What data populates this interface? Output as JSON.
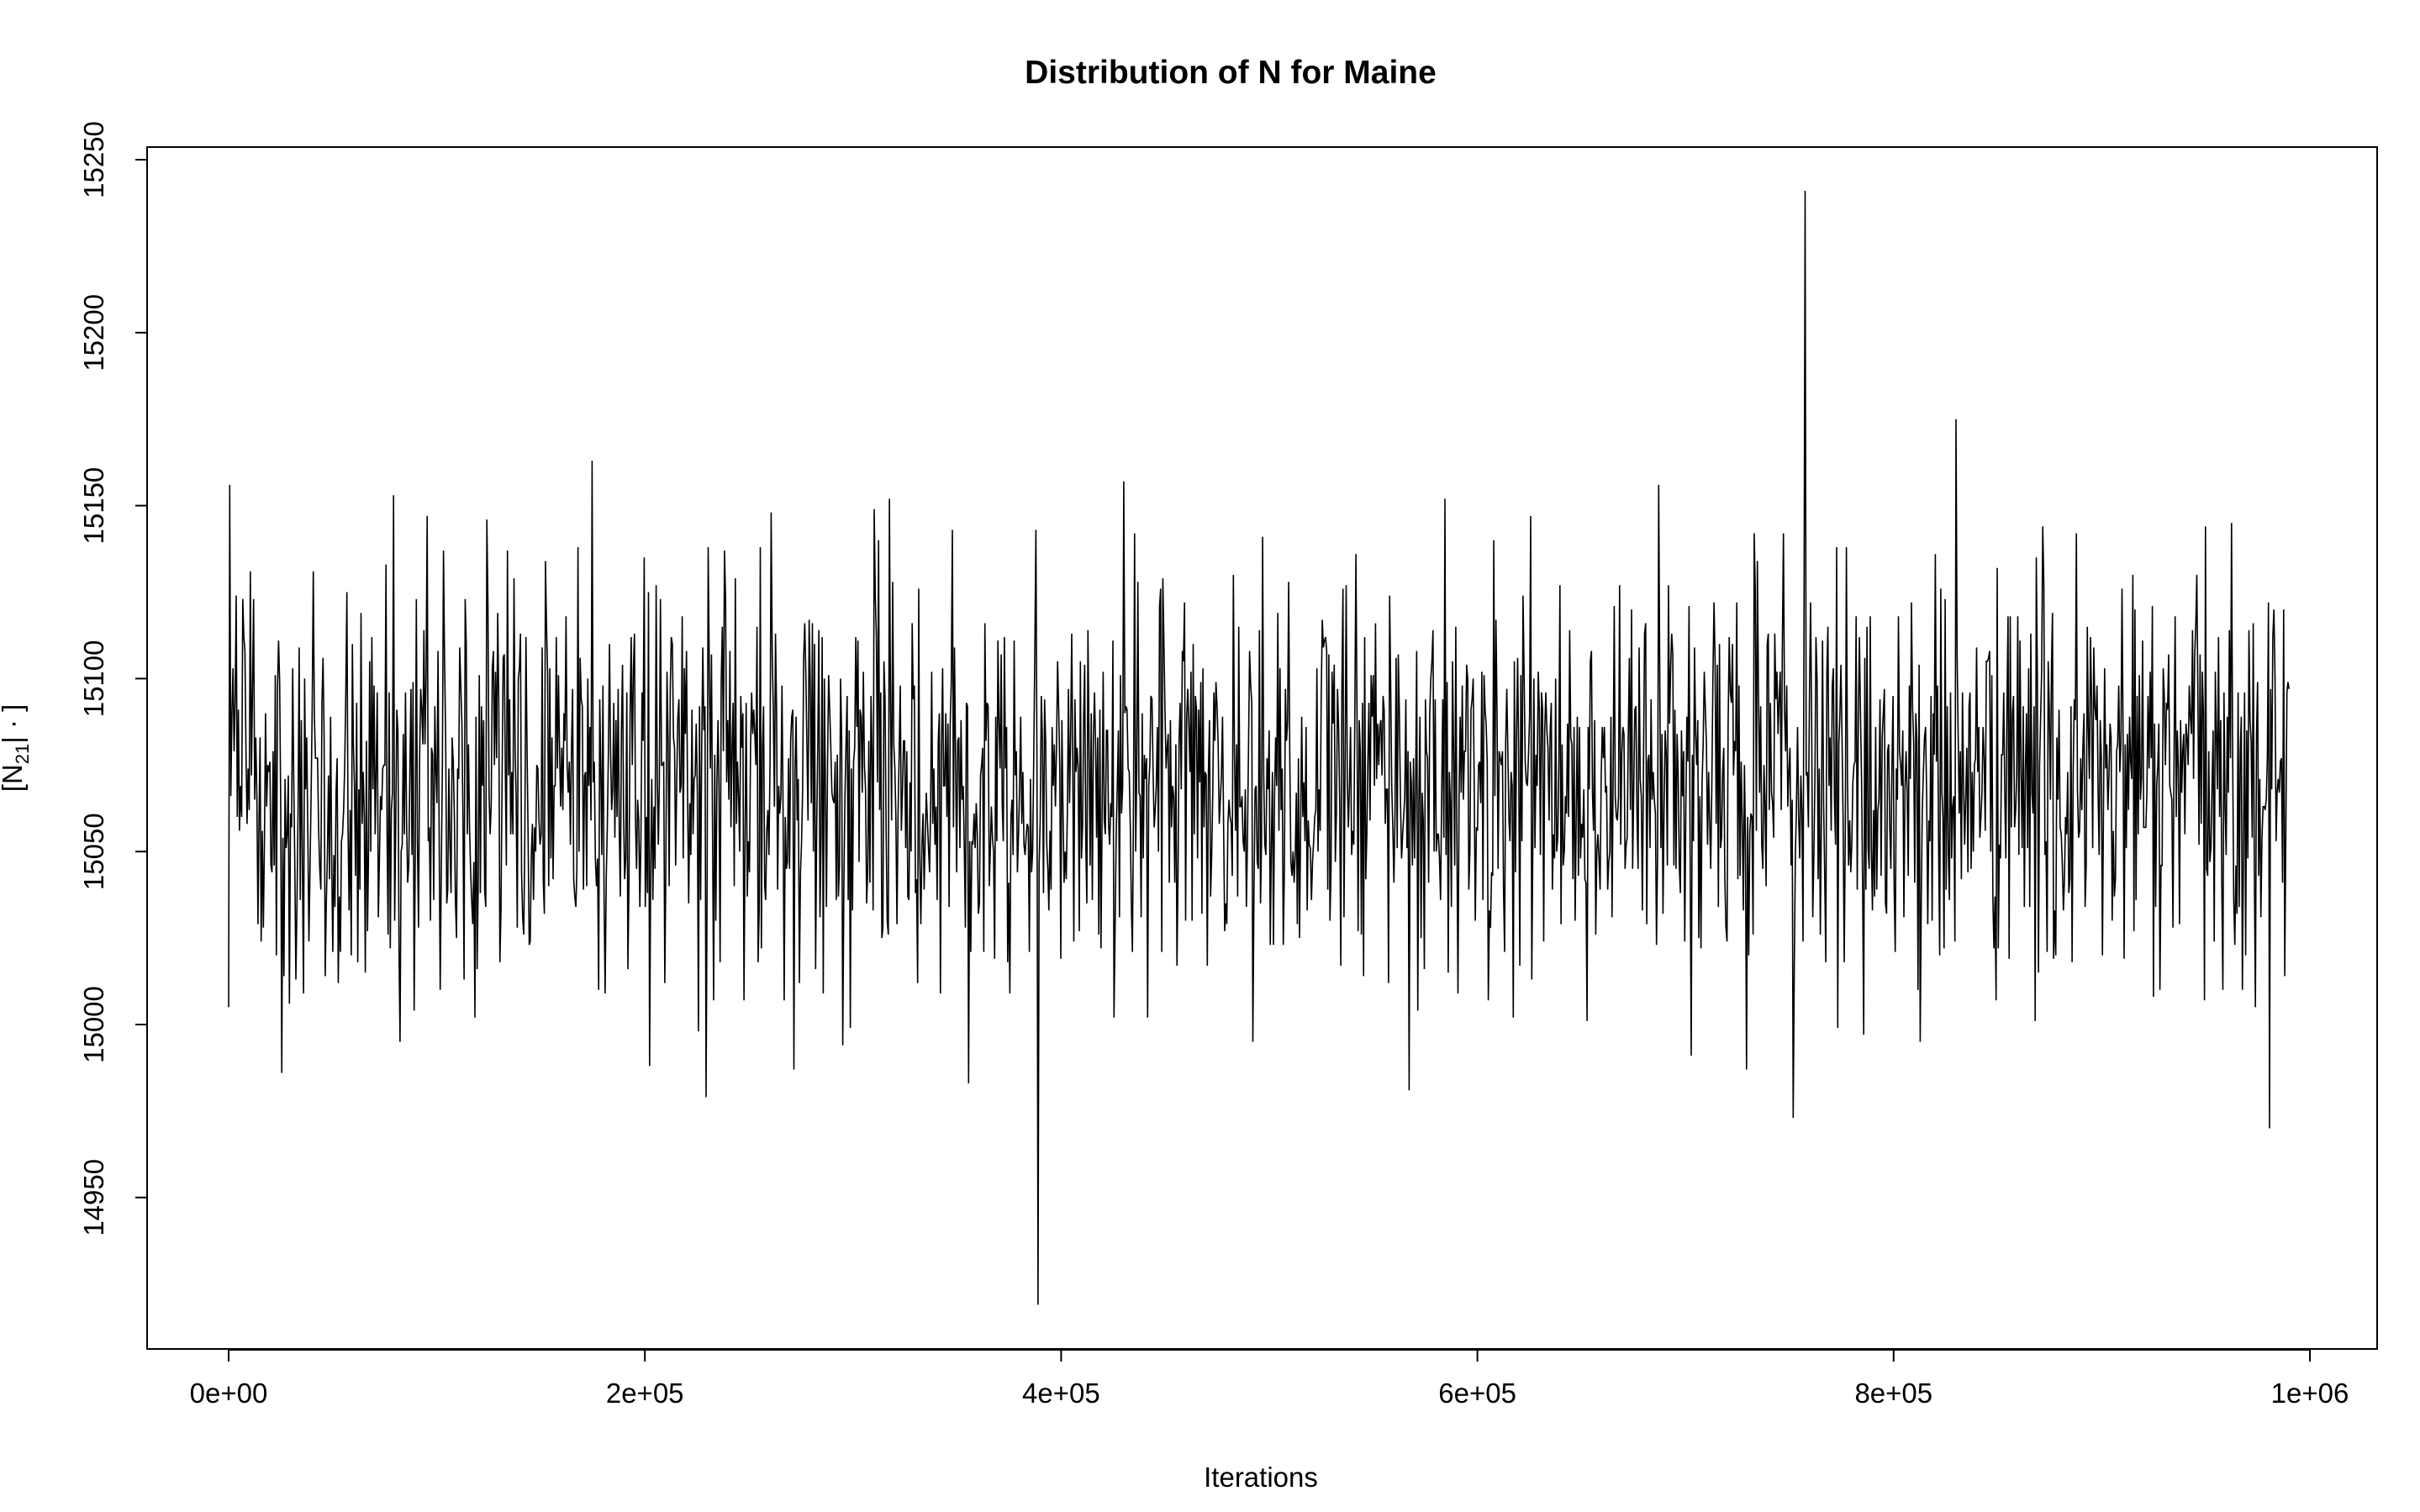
{
  "chart_data": {
    "type": "line",
    "title": "Distribution of N for Maine",
    "xlabel": "Iterations",
    "ylabel": {
      "open": "[N",
      "subscript": "21",
      "close": "| · ]"
    },
    "xlim": [
      0,
      1000000
    ],
    "ylim": [
      14917,
      15253
    ],
    "x_ticks": [
      {
        "value": 0,
        "label": "0e+00"
      },
      {
        "value": 200000,
        "label": "2e+05"
      },
      {
        "value": 400000,
        "label": "4e+05"
      },
      {
        "value": 600000,
        "label": "6e+05"
      },
      {
        "value": 800000,
        "label": "8e+05"
      },
      {
        "value": 1000000,
        "label": "1e+06"
      }
    ],
    "y_ticks": [
      {
        "value": 14950,
        "label": "14950"
      },
      {
        "value": 15000,
        "label": "15000"
      },
      {
        "value": 15050,
        "label": "15050"
      },
      {
        "value": 15100,
        "label": "15100"
      },
      {
        "value": 15150,
        "label": "15150"
      },
      {
        "value": 15200,
        "label": "15200"
      },
      {
        "value": 15250,
        "label": "15250"
      }
    ],
    "grid": false,
    "legend": "none",
    "trace": {
      "n_draws": 1900,
      "x_start": 0,
      "x_end": 990000,
      "mean": 15070,
      "sd": 30,
      "min": 14919,
      "max": 15241,
      "color": "#000000"
    }
  }
}
